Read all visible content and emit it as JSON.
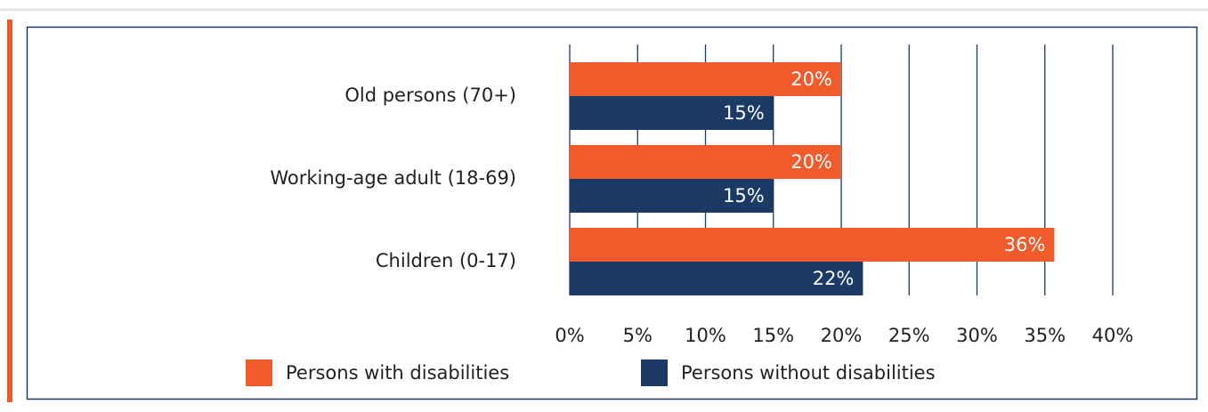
{
  "chart_data": {
    "type": "hbar",
    "categories": [
      "Old persons (70+)",
      "Working-age adult (18-69)",
      "Children (0-17)"
    ],
    "series": [
      {
        "name": "Persons with disabilities",
        "color": "#f15a2b",
        "values": [
          20,
          20,
          35.7
        ],
        "value_labels": [
          "20%",
          "20%",
          "36%"
        ]
      },
      {
        "name": "Persons without disabilities",
        "color": "#1b3a66",
        "values": [
          15,
          15,
          21.6
        ],
        "value_labels": [
          "15%",
          "15%",
          "22%"
        ]
      }
    ],
    "xlim": [
      0,
      40
    ],
    "xticks": [
      {
        "value": 0,
        "label": "0%"
      },
      {
        "value": 5,
        "label": "5%"
      },
      {
        "value": 10,
        "label": "10%"
      },
      {
        "value": 15,
        "label": "15%"
      },
      {
        "value": 20,
        "label": "20%"
      },
      {
        "value": 25,
        "label": "25%"
      },
      {
        "value": 30,
        "label": "30%"
      },
      {
        "value": 35,
        "label": "35%"
      },
      {
        "value": 40,
        "label": "40%"
      }
    ],
    "grid": true
  }
}
